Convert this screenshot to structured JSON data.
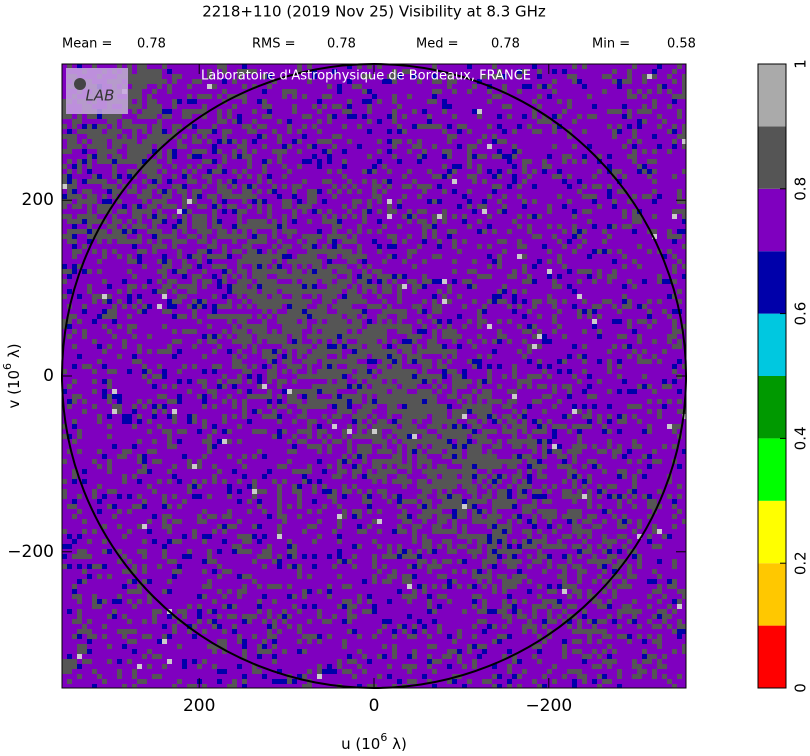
{
  "chart_data": {
    "type": "heatmap",
    "title": "2218+110   (2019 Nov 25)   Visibility at  8.3 GHz",
    "stats": [
      {
        "label": "Mean =",
        "value": 0.78
      },
      {
        "label": "RMS =",
        "value": 0.78
      },
      {
        "label": "Med =",
        "value": 0.78
      },
      {
        "label": "Min =",
        "value": 0.58
      }
    ],
    "banner": "Laboratoire d'Astrophysique de Bordeaux, FRANCE",
    "logo": "LAB",
    "xlabel": {
      "text": "u  (10",
      "sup": "6",
      "rest": " λ)"
    },
    "ylabel": {
      "text": "v  (10",
      "sup": "6",
      "rest": " λ)"
    },
    "xlim": [
      357,
      -357
    ],
    "ylim": [
      -355,
      355
    ],
    "xticks": [
      200,
      0,
      {
        "value": -200,
        "label": "−200"
      }
    ],
    "yticks": [
      {
        "value": -200,
        "label": "−200"
      },
      0,
      200
    ],
    "colorbar": {
      "clim": [
        0,
        1
      ],
      "ticks": [
        0,
        0.2,
        0.4,
        0.6,
        0.8,
        1
      ],
      "colors": [
        "#ff0000",
        "#ffc800",
        "#ffff00",
        "#00ff00",
        "#009900",
        "#00c8e0",
        "#0000aa",
        "#7f00bf",
        "#555555",
        "#aaaaaa"
      ]
    }
  }
}
